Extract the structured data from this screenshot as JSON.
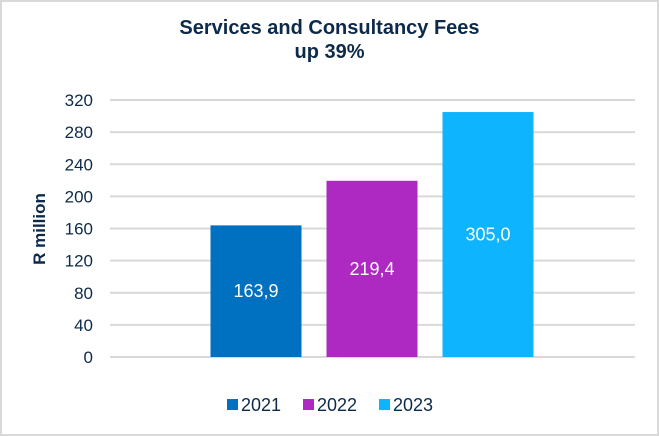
{
  "chart_data": {
    "type": "bar",
    "title": "Services and Consultancy Fees",
    "subtitle": "up 39%",
    "xlabel": "",
    "ylabel": "R million",
    "ylim": [
      0,
      320
    ],
    "yticks": [
      0,
      40,
      80,
      120,
      160,
      200,
      240,
      280,
      320
    ],
    "grid": true,
    "legend_position": "bottom",
    "categories": [
      "2021",
      "2022",
      "2023"
    ],
    "values": [
      163.9,
      219.4,
      305.0
    ],
    "data_labels": [
      "163,9",
      "219,4",
      "305,0"
    ],
    "colors": [
      "#0070c0",
      "#ad29c2",
      "#0fb4ff"
    ],
    "legend": [
      "2021",
      "2022",
      "2023"
    ]
  }
}
